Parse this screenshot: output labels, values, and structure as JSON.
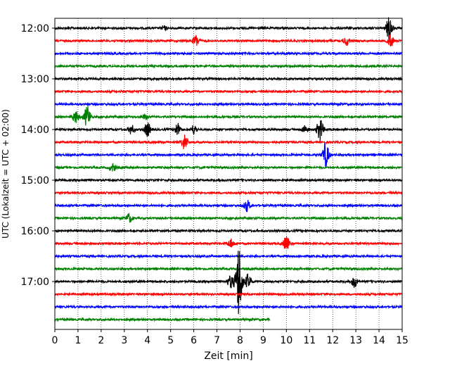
{
  "chart_data": {
    "type": "line",
    "xlabel": "Zeit  [min]",
    "ylabel": "UTC (Lokalzeit = UTC + 02:00)",
    "xlim": [
      0,
      15
    ],
    "x_ticks": [
      "0",
      "1",
      "2",
      "3",
      "4",
      "5",
      "6",
      "7",
      "8",
      "9",
      "10",
      "11",
      "12",
      "13",
      "14",
      "15"
    ],
    "y_ticks": [
      "12:00",
      "13:00",
      "14:00",
      "15:00",
      "16:00",
      "17:00"
    ],
    "grid": "vertical dotted",
    "trace_colors": [
      "#000000",
      "#ff0000",
      "#0000ff",
      "#008000"
    ],
    "traces": [
      {
        "start": "12:00",
        "end_min": 15,
        "color": "#000000",
        "events": [
          {
            "t": 14.45,
            "amp": 1.0
          },
          {
            "t": 4.7,
            "amp": 0.15
          }
        ]
      },
      {
        "start": "12:15",
        "end_min": 15,
        "color": "#ff0000",
        "events": [
          {
            "t": 6.1,
            "amp": 0.45
          },
          {
            "t": 12.6,
            "amp": 0.35
          },
          {
            "t": 14.5,
            "amp": 0.45
          }
        ]
      },
      {
        "start": "12:30",
        "end_min": 15,
        "color": "#0000ff",
        "events": []
      },
      {
        "start": "12:45",
        "end_min": 15,
        "color": "#008000",
        "events": []
      },
      {
        "start": "13:00",
        "end_min": 15,
        "color": "#000000",
        "events": []
      },
      {
        "start": "13:15",
        "end_min": 15,
        "color": "#ff0000",
        "events": []
      },
      {
        "start": "13:30",
        "end_min": 15,
        "color": "#0000ff",
        "events": []
      },
      {
        "start": "13:45",
        "end_min": 15,
        "color": "#008000",
        "events": [
          {
            "t": 0.9,
            "amp": 0.5
          },
          {
            "t": 1.4,
            "amp": 0.9
          },
          {
            "t": 3.9,
            "amp": 0.2
          }
        ]
      },
      {
        "start": "14:00",
        "end_min": 15,
        "color": "#000000",
        "events": [
          {
            "t": 3.3,
            "amp": 0.35
          },
          {
            "t": 4.0,
            "amp": 0.55
          },
          {
            "t": 5.3,
            "amp": 0.5
          },
          {
            "t": 6.0,
            "amp": 0.35
          },
          {
            "t": 10.8,
            "amp": 0.3
          },
          {
            "t": 11.45,
            "amp": 0.9
          }
        ]
      },
      {
        "start": "14:15",
        "end_min": 15,
        "color": "#ff0000",
        "events": [
          {
            "t": 5.6,
            "amp": 0.6
          }
        ]
      },
      {
        "start": "14:30",
        "end_min": 15,
        "color": "#0000ff",
        "events": [
          {
            "t": 11.7,
            "amp": 1.0
          }
        ]
      },
      {
        "start": "14:45",
        "end_min": 15,
        "color": "#008000",
        "events": [
          {
            "t": 2.5,
            "amp": 0.3
          }
        ]
      },
      {
        "start": "15:00",
        "end_min": 15,
        "color": "#000000",
        "events": []
      },
      {
        "start": "15:15",
        "end_min": 15,
        "color": "#ff0000",
        "events": []
      },
      {
        "start": "15:30",
        "end_min": 15,
        "color": "#0000ff",
        "events": [
          {
            "t": 8.3,
            "amp": 0.45
          }
        ]
      },
      {
        "start": "15:45",
        "end_min": 15,
        "color": "#008000",
        "events": [
          {
            "t": 3.2,
            "amp": 0.35
          }
        ]
      },
      {
        "start": "16:00",
        "end_min": 15,
        "color": "#000000",
        "events": []
      },
      {
        "start": "16:15",
        "end_min": 15,
        "color": "#ff0000",
        "events": [
          {
            "t": 7.6,
            "amp": 0.35
          },
          {
            "t": 10.0,
            "amp": 0.6
          }
        ]
      },
      {
        "start": "16:30",
        "end_min": 15,
        "color": "#0000ff",
        "events": []
      },
      {
        "start": "16:45",
        "end_min": 15,
        "color": "#008000",
        "events": []
      },
      {
        "start": "17:00",
        "end_min": 15,
        "color": "#000000",
        "events": [
          {
            "t": 7.6,
            "amp": 0.5
          },
          {
            "t": 7.95,
            "amp": 3.0
          },
          {
            "t": 8.35,
            "amp": 0.6
          },
          {
            "t": 12.95,
            "amp": 0.45
          }
        ]
      },
      {
        "start": "17:15",
        "end_min": 15,
        "color": "#ff0000",
        "events": []
      },
      {
        "start": "17:30",
        "end_min": 15,
        "color": "#0000ff",
        "events": []
      },
      {
        "start": "17:45",
        "end_min": 9.3,
        "color": "#008000",
        "events": []
      }
    ]
  }
}
